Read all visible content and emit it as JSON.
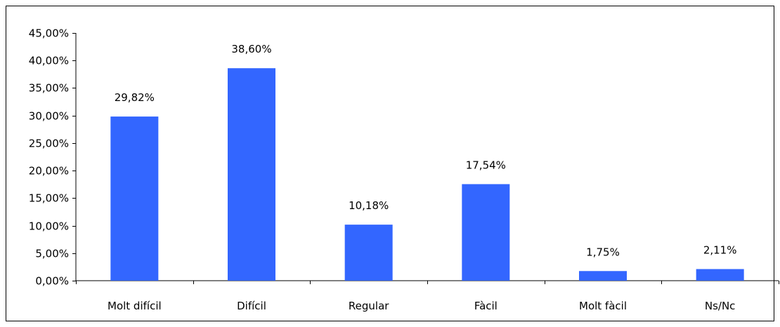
{
  "chart_data": {
    "type": "bar",
    "categories": [
      "Molt difícil",
      "Difícil",
      "Regular",
      "Fàcil",
      "Molt fàcil",
      "Ns/Nc"
    ],
    "values": [
      29.82,
      38.6,
      10.18,
      17.54,
      1.75,
      2.11
    ],
    "data_labels": [
      "29,82%",
      "38,60%",
      "10,18%",
      "17,54%",
      "1,75%",
      "2,11%"
    ],
    "ylim": [
      0,
      45
    ],
    "y_ticks": [
      0,
      5,
      10,
      15,
      20,
      25,
      30,
      35,
      40,
      45
    ],
    "y_tick_labels": [
      "0,00%",
      "5,00%",
      "10,00%",
      "15,00%",
      "20,00%",
      "25,00%",
      "30,00%",
      "35,00%",
      "40,00%",
      "45,00%"
    ],
    "grid": false,
    "legend": "none",
    "colors": {
      "bar": "#3366FF",
      "axis": "#000000"
    }
  }
}
